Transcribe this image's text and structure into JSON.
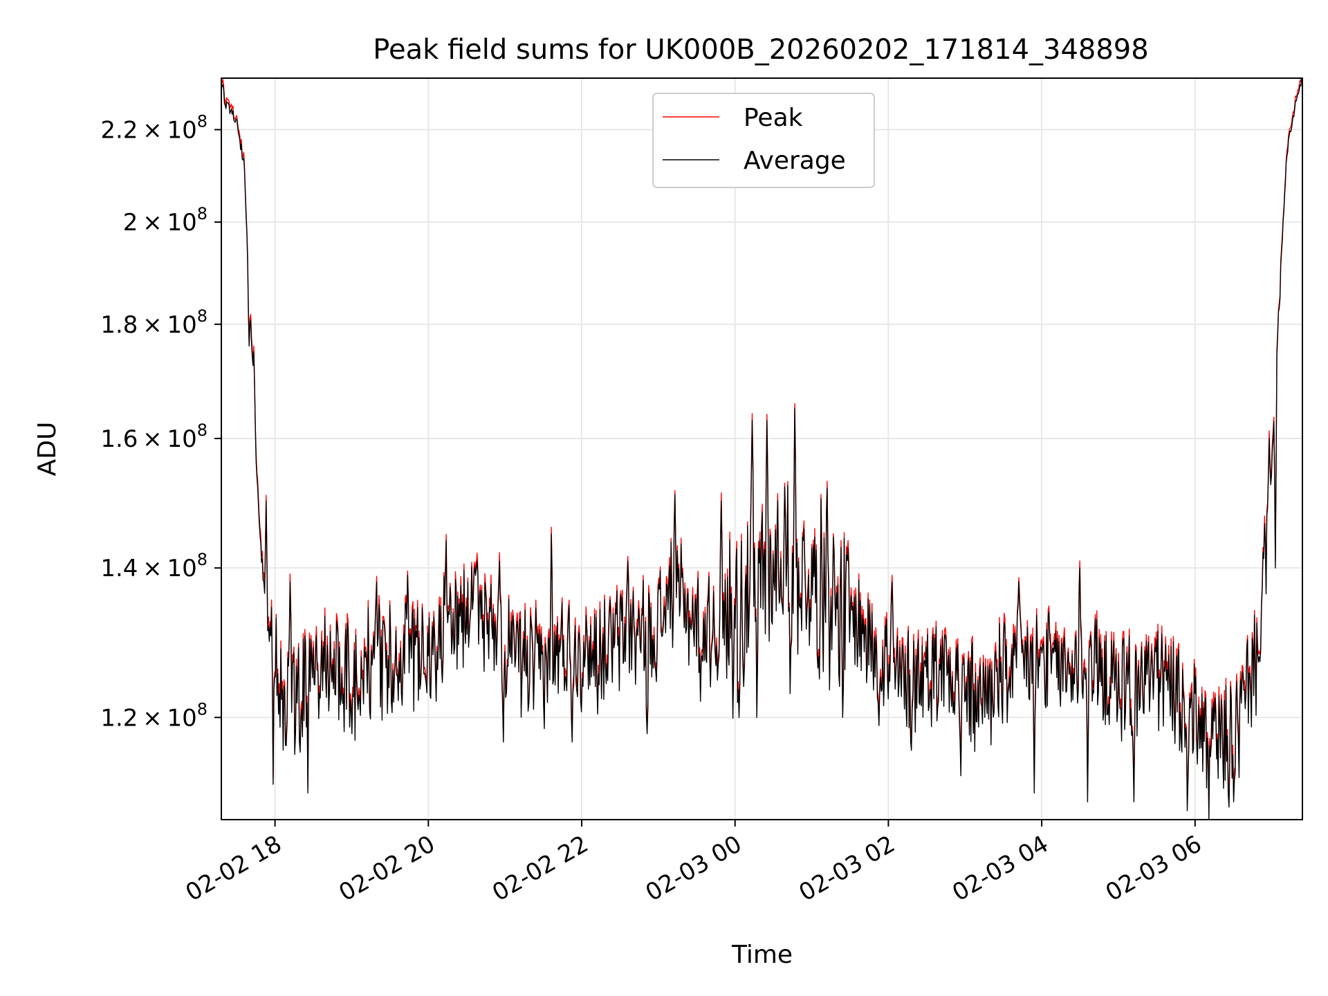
{
  "chart_data": {
    "type": "line",
    "title": "Peak field sums for UK000B_20260202_171814_348898",
    "xlabel": "Time",
    "ylabel": "ADU",
    "yscale": "log",
    "x_unit": "hours since 2026-02-02 00:00",
    "xlim": [
      17.3,
      31.4
    ],
    "ylim": [
      108000000,
      232000000
    ],
    "grid": true,
    "legend_position": "upper-center",
    "x_ticks": [
      {
        "value": 18,
        "label": "02-02 18"
      },
      {
        "value": 20,
        "label": "02-02 20"
      },
      {
        "value": 22,
        "label": "02-02 22"
      },
      {
        "value": 24,
        "label": "02-03 00"
      },
      {
        "value": 26,
        "label": "02-03 02"
      },
      {
        "value": 28,
        "label": "02-03 04"
      },
      {
        "value": 30,
        "label": "02-03 06"
      }
    ],
    "y_ticks": [
      {
        "value": 120000000,
        "mantissa": "1.2"
      },
      {
        "value": 140000000,
        "mantissa": "1.4"
      },
      {
        "value": 160000000,
        "mantissa": "1.6"
      },
      {
        "value": 180000000,
        "mantissa": "1.8"
      },
      {
        "value": 200000000,
        "mantissa": "2"
      },
      {
        "value": 220000000,
        "mantissa": "2.2"
      }
    ],
    "y_tick_base": "10",
    "y_tick_exponent": "8",
    "series": [
      {
        "name": "Peak",
        "color": "#ff0000"
      },
      {
        "name": "Average",
        "color": "#000000"
      }
    ],
    "keypoints": [
      [
        17.3,
        232
      ],
      [
        17.35,
        226
      ],
      [
        17.5,
        222
      ],
      [
        17.6,
        212
      ],
      [
        17.65,
        190
      ],
      [
        17.7,
        175
      ],
      [
        17.75,
        158
      ],
      [
        17.8,
        145
      ],
      [
        17.9,
        132
      ],
      [
        18.0,
        128
      ],
      [
        18.1,
        122
      ],
      [
        18.3,
        123
      ],
      [
        18.5,
        125
      ],
      [
        18.8,
        127
      ],
      [
        19.0,
        125
      ],
      [
        19.3,
        127
      ],
      [
        19.6,
        128
      ],
      [
        20.0,
        128
      ],
      [
        20.3,
        133
      ],
      [
        20.6,
        134
      ],
      [
        20.9,
        132
      ],
      [
        21.2,
        127
      ],
      [
        21.5,
        126
      ],
      [
        21.8,
        129
      ],
      [
        22.2,
        128
      ],
      [
        22.6,
        131
      ],
      [
        22.9,
        130
      ],
      [
        23.2,
        137
      ],
      [
        23.5,
        132
      ],
      [
        23.8,
        131
      ],
      [
        24.1,
        135
      ],
      [
        24.4,
        140
      ],
      [
        24.7,
        142
      ],
      [
        25.0,
        138
      ],
      [
        25.3,
        136
      ],
      [
        25.6,
        132
      ],
      [
        25.9,
        128
      ],
      [
        26.2,
        124
      ],
      [
        26.5,
        126
      ],
      [
        26.8,
        127
      ],
      [
        27.1,
        122
      ],
      [
        27.4,
        124
      ],
      [
        27.7,
        127
      ],
      [
        28.0,
        127
      ],
      [
        28.3,
        126
      ],
      [
        28.6,
        128
      ],
      [
        28.9,
        124
      ],
      [
        29.2,
        124
      ],
      [
        29.5,
        126
      ],
      [
        29.8,
        122
      ],
      [
        30.1,
        119
      ],
      [
        30.3,
        117
      ],
      [
        30.5,
        117
      ],
      [
        30.65,
        122
      ],
      [
        30.8,
        128
      ],
      [
        30.9,
        138
      ],
      [
        31.0,
        155
      ],
      [
        31.1,
        185
      ],
      [
        31.15,
        200
      ],
      [
        31.2,
        215
      ],
      [
        31.3,
        225
      ],
      [
        31.4,
        232
      ]
    ],
    "spikes": [
      [
        17.72,
        175
      ],
      [
        17.98,
        141
      ],
      [
        18.2,
        138
      ],
      [
        18.43,
        137
      ],
      [
        19.33,
        138
      ],
      [
        19.73,
        139
      ],
      [
        20.23,
        144
      ],
      [
        20.64,
        141
      ],
      [
        20.93,
        141
      ],
      [
        21.6,
        145
      ],
      [
        22.6,
        141
      ],
      [
        23.22,
        151
      ],
      [
        23.82,
        150
      ],
      [
        24.22,
        163
      ],
      [
        24.42,
        163
      ],
      [
        24.78,
        165
      ],
      [
        25.2,
        152
      ],
      [
        26.05,
        138
      ],
      [
        27.7,
        138
      ],
      [
        28.5,
        140
      ],
      [
        30.97,
        160
      ],
      [
        31.1,
        183
      ]
    ],
    "dips": [
      [
        17.66,
        176
      ],
      [
        17.88,
        150
      ],
      [
        17.98,
        112
      ],
      [
        18.43,
        111
      ],
      [
        19.0,
        118
      ],
      [
        20.1,
        122
      ],
      [
        20.98,
        117
      ],
      [
        21.88,
        117
      ],
      [
        22.85,
        118
      ],
      [
        23.55,
        122
      ],
      [
        24.05,
        120
      ],
      [
        24.28,
        120
      ],
      [
        24.72,
        123
      ],
      [
        25.4,
        120
      ],
      [
        25.88,
        119
      ],
      [
        26.3,
        116
      ],
      [
        26.95,
        113
      ],
      [
        27.9,
        111
      ],
      [
        28.6,
        110
      ],
      [
        29.2,
        110
      ],
      [
        29.9,
        109
      ],
      [
        30.18,
        108
      ],
      [
        30.5,
        110
      ],
      [
        31.05,
        140
      ]
    ]
  }
}
